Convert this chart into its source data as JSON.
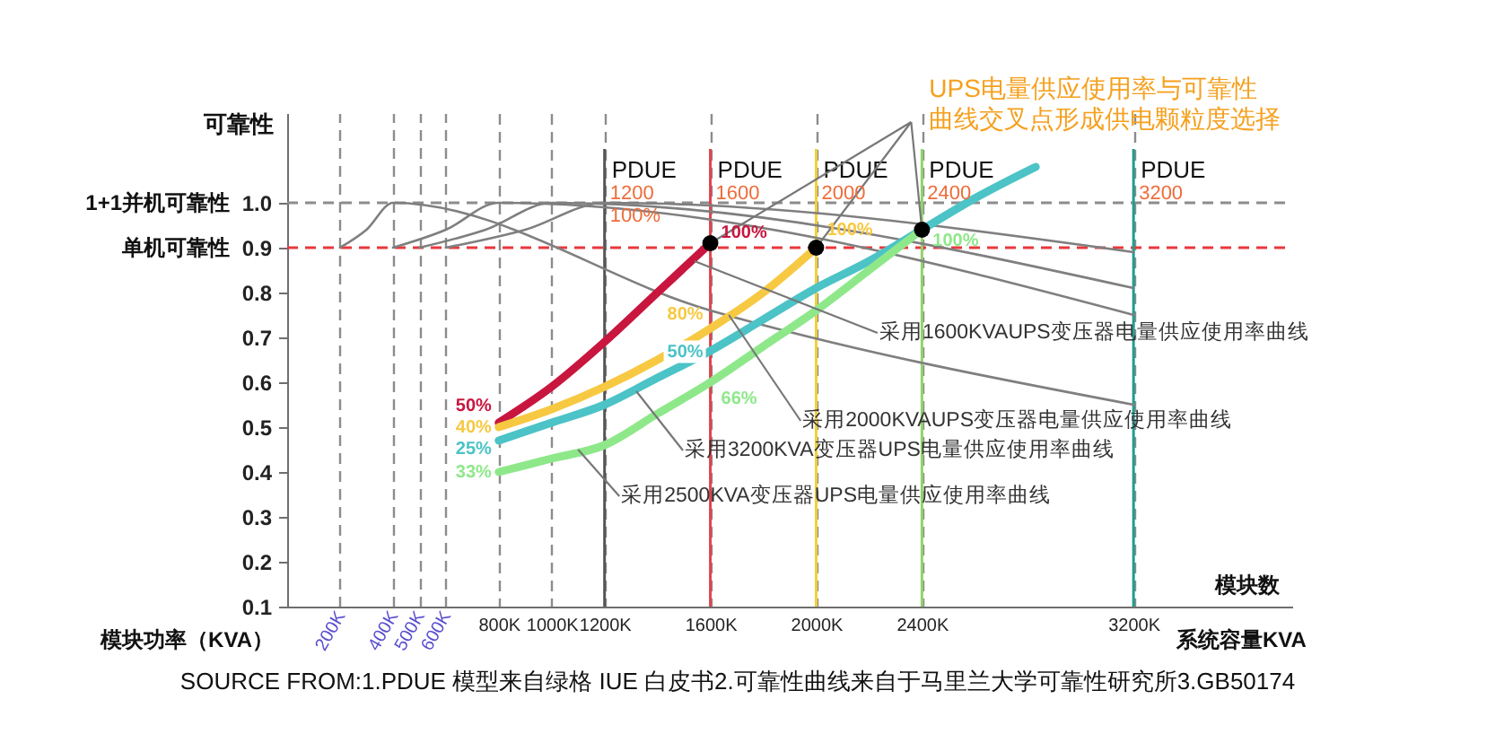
{
  "chart_data": {
    "type": "line",
    "ylabel": "可靠性",
    "xlabel": "系统容量KVA",
    "x2label": "模块功率（KVA）",
    "xlim": [
      0,
      3800
    ],
    "xticks": [
      {
        "value": 800,
        "label": "800K"
      },
      {
        "value": 1000,
        "label": "1000K"
      },
      {
        "value": 1200,
        "label": "1200K"
      },
      {
        "value": 1600,
        "label": "1600K"
      },
      {
        "value": 2000,
        "label": "2000K"
      },
      {
        "value": 2400,
        "label": "2400K"
      },
      {
        "value": 3200,
        "label": "3200K"
      }
    ],
    "x2lim": [
      0,
      3800
    ],
    "x2ticks": [
      {
        "value": 200,
        "label": "200K"
      },
      {
        "value": 400,
        "label": "400K"
      },
      {
        "value": 500,
        "label": "500K"
      },
      {
        "value": 600,
        "label": "600K"
      }
    ],
    "ylim": [
      0.1,
      1.2
    ],
    "yticks": [
      0.1,
      0.2,
      0.3,
      0.4,
      0.5,
      0.6,
      0.7,
      0.8,
      0.9,
      {
        "value": 1,
        "label": "1.0"
      }
    ],
    "grid": "x",
    "ref_lines": [
      {
        "axis": "y",
        "value": 1.0,
        "label": "1+1并机可靠性",
        "color": "#8c8c8c",
        "line_style": "dashed"
      },
      {
        "axis": "y",
        "value": 0.9,
        "label": "单机可靠性",
        "color": "#e8383d",
        "line_style": "dashed"
      },
      {
        "axis": "x",
        "value": 1200,
        "label": "PDUE",
        "color": "#555555",
        "line_style": "solid"
      },
      {
        "axis": "x",
        "value": 1600,
        "label": "PDUE",
        "color": "#e0434a",
        "line_style": "solid"
      },
      {
        "axis": "x",
        "value": 2000,
        "label": "PDUE",
        "color": "#f2cf3a",
        "line_style": "solid"
      },
      {
        "axis": "x",
        "value": 2400,
        "label": "PDUE",
        "color": "#8fd46a",
        "line_style": "solid"
      },
      {
        "axis": "x",
        "value": 3200,
        "label": "PDUE",
        "color": "#1f9e8e",
        "line_style": "solid"
      }
    ],
    "series": [
      {
        "color": "#c8163f",
        "x": [
          800,
          1000,
          1200,
          1400,
          1600
        ],
        "values": [
          0.51,
          0.59,
          0.69,
          0.8,
          0.91
        ]
      },
      {
        "color": "#f7c942",
        "x": [
          800,
          1000,
          1200,
          1400,
          1600,
          1800,
          2000
        ],
        "values": [
          0.5,
          0.54,
          0.59,
          0.65,
          0.72,
          0.8,
          0.9
        ]
      },
      {
        "color": "#4cc3c6",
        "x": [
          800,
          1000,
          1200,
          1400,
          1600,
          1800,
          2000,
          2200,
          2400,
          2600,
          2830
        ],
        "values": [
          0.47,
          0.51,
          0.55,
          0.61,
          0.67,
          0.74,
          0.81,
          0.87,
          0.94,
          1.01,
          1.08
        ]
      },
      {
        "color": "#8ee88a",
        "x": [
          800,
          1000,
          1200,
          1400,
          1600,
          1800,
          2000,
          2200,
          2400
        ],
        "values": [
          0.4,
          0.43,
          0.46,
          0.53,
          0.6,
          0.68,
          0.76,
          0.85,
          0.94
        ]
      },
      {
        "color": "#7f7f7f",
        "x": [
          200,
          300,
          400,
          1600,
          3200
        ],
        "values": [
          0.9,
          0.94,
          1.0,
          0.76,
          0.55
        ]
      },
      {
        "color": "#7f7f7f",
        "x": [
          400,
          600,
          800,
          3200
        ],
        "values": [
          0.9,
          0.94,
          1.0,
          0.75
        ]
      },
      {
        "color": "#7f7f7f",
        "x": [
          500,
          750,
          1000,
          3200
        ],
        "values": [
          0.9,
          0.94,
          1.0,
          0.81
        ]
      },
      {
        "color": "#7f7f7f",
        "x": [
          600,
          900,
          1200,
          3200
        ],
        "values": [
          0.9,
          0.94,
          1.0,
          0.89
        ]
      },
      {
        "type": "scatter",
        "color": "#000000",
        "marker": "circle",
        "x": [
          1600,
          2000,
          2400
        ],
        "values": [
          0.91,
          0.9,
          0.94
        ]
      }
    ],
    "annotations": [
      "模块数",
      "SOURCE FROM:1.PDUE 模型来自绿格 IUE 白皮书2.可靠性曲线来自于马里兰大学可靠性研究所3.GB50174",
      {
        "text": "UPS电量供应使用率与可靠性曲线交叉点形成供电颗粒度选择",
        "x": 2400,
        "y": 0.94
      },
      {
        "text": "1200",
        "x": 1200,
        "y": 1.02
      },
      {
        "text": "100%",
        "x": 1200,
        "y": 0.97
      },
      {
        "text": "1600",
        "x": 1600,
        "y": 1.02
      },
      {
        "text": "2000",
        "x": 2000,
        "y": 1.02
      },
      {
        "text": "2400",
        "x": 2400,
        "y": 1.02
      },
      {
        "text": "3200",
        "x": 3200,
        "y": 1.02
      },
      {
        "text": "采用1600KVAUPS变压器电量供应使用率曲线",
        "x": 1540,
        "y": 0.87
      },
      {
        "text": "采用2000KVAUPS变压器电量供应使用率曲线",
        "x": 1670,
        "y": 0.75
      },
      {
        "text": "采用3200KVA变压器UPS电量供应使用率曲线",
        "x": 1320,
        "y": 0.58
      },
      {
        "text": "采用2500KVA变压器UPS电量供应使用率曲线",
        "x": 1100,
        "y": 0.45
      },
      {
        "text": "50%",
        "x": 800,
        "y": 0.51
      },
      {
        "text": "40%",
        "x": 800,
        "y": 0.5
      },
      {
        "text": "25%",
        "x": 800,
        "y": 0.47
      },
      {
        "text": "33%",
        "x": 800,
        "y": 0.4
      },
      {
        "text": "100%",
        "x": 1600,
        "y": 0.91
      },
      {
        "text": "80%",
        "x": 1600,
        "y": 0.72
      },
      {
        "text": "50%",
        "x": 1600,
        "y": 0.67
      },
      {
        "text": "66%",
        "x": 1600,
        "y": 0.6
      },
      {
        "text": "100%",
        "x": 2000,
        "y": 0.9
      },
      {
        "text": "100%",
        "x": 2400,
        "y": 0.94
      }
    ]
  }
}
